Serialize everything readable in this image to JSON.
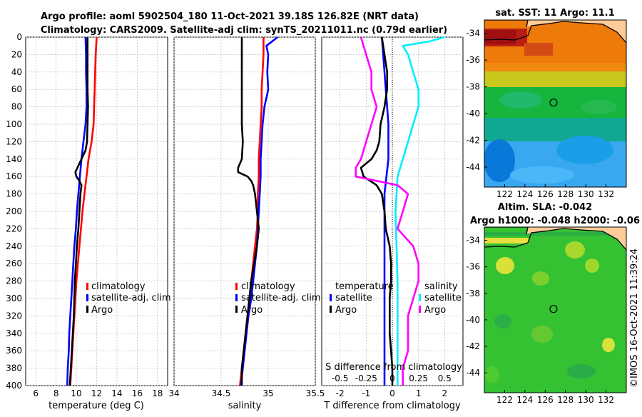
{
  "title": {
    "line1": "Argo profile: aoml 5902504_180 11-Oct-2021 39.18S 126.82E (NRT data)",
    "line2": "Climatology: CARS2009. Satellite-adj clim: synTS_20211011.nc (0.79d earlier)"
  },
  "depth_ticks": [
    "0",
    "20",
    "40",
    "60",
    "80",
    "100",
    "120",
    "140",
    "160",
    "180",
    "200",
    "220",
    "240",
    "260",
    "280",
    "300",
    "320",
    "340",
    "360",
    "380",
    "400"
  ],
  "chart_data": [
    {
      "type": "line",
      "name": "temperature",
      "xlabel": "temperature (deg C)",
      "ylabel": "",
      "xlim": [
        5,
        19
      ],
      "ylim": [
        400,
        0
      ],
      "xticks": [
        "6",
        "8",
        "10",
        "12",
        "14",
        "16",
        "18"
      ],
      "legend": [
        "climatology",
        "satellite-adj. clim",
        "Argo"
      ],
      "colors": {
        "climatology": "#ff0000",
        "satellite": "#0000ff",
        "argo": "#000000"
      },
      "series": [
        {
          "name": "climatology",
          "depth": [
            0,
            20,
            40,
            60,
            80,
            100,
            120,
            140,
            160,
            180,
            200,
            220,
            240,
            260,
            280,
            300,
            320,
            340,
            360,
            380,
            400
          ],
          "values": [
            12.0,
            11.9,
            11.85,
            11.8,
            11.75,
            11.7,
            11.5,
            11.2,
            11.0,
            10.8,
            10.6,
            10.45,
            10.3,
            10.15,
            10.0,
            9.9,
            9.8,
            9.7,
            9.6,
            9.5,
            9.4
          ]
        },
        {
          "name": "satellite-adj. clim",
          "depth": [
            0,
            20,
            40,
            60,
            80,
            100,
            120,
            140,
            160,
            180,
            200,
            220,
            240,
            260,
            280,
            300,
            320,
            340,
            360,
            380,
            400
          ],
          "values": [
            10.9,
            10.95,
            10.95,
            11.0,
            11.0,
            10.9,
            10.7,
            10.5,
            10.35,
            10.2,
            10.05,
            9.95,
            9.8,
            9.7,
            9.6,
            9.5,
            9.4,
            9.3,
            9.25,
            9.15,
            9.1
          ]
        },
        {
          "name": "Argo",
          "depth": [
            0,
            20,
            40,
            60,
            80,
            100,
            120,
            130,
            140,
            150,
            155,
            160,
            165,
            170,
            180,
            200,
            220,
            240,
            260,
            280,
            300,
            320,
            340,
            360,
            380,
            400
          ],
          "values": [
            11.1,
            11.1,
            11.1,
            11.1,
            11.15,
            11.1,
            11.05,
            10.9,
            10.5,
            10.1,
            9.9,
            10.0,
            10.3,
            10.5,
            10.4,
            10.3,
            10.2,
            10.05,
            9.95,
            9.85,
            9.8,
            9.75,
            9.65,
            9.55,
            9.45,
            9.35
          ]
        }
      ]
    },
    {
      "type": "line",
      "name": "salinity",
      "xlabel": "salinity",
      "ylabel": "",
      "xlim": [
        34,
        35.5
      ],
      "ylim": [
        400,
        0
      ],
      "xticks": [
        "34",
        "34.5",
        "35",
        "35.5"
      ],
      "legend": [
        "climatology",
        "satellite-adj. clim",
        "Argo"
      ],
      "colors": {
        "climatology": "#ff0000",
        "satellite": "#0000ff",
        "argo": "#000000"
      },
      "series": [
        {
          "name": "climatology",
          "depth": [
            0,
            20,
            40,
            60,
            80,
            100,
            120,
            140,
            160,
            180,
            200,
            220,
            240,
            260,
            280,
            300,
            320,
            340,
            360,
            380,
            400
          ],
          "values": [
            34.95,
            34.95,
            34.94,
            34.93,
            34.93,
            34.92,
            34.91,
            34.9,
            34.9,
            34.89,
            34.89,
            34.88,
            34.86,
            34.84,
            34.82,
            34.8,
            34.78,
            34.76,
            34.74,
            34.72,
            34.7
          ]
        },
        {
          "name": "satellite-adj. clim",
          "depth": [
            0,
            10,
            20,
            40,
            60,
            80,
            100,
            120,
            140,
            160,
            180,
            200,
            220,
            240,
            260,
            280,
            300,
            320,
            340,
            360,
            380,
            400
          ],
          "values": [
            35.1,
            34.98,
            35.0,
            34.99,
            35.0,
            34.96,
            34.94,
            34.93,
            34.92,
            34.92,
            34.91,
            34.9,
            34.89,
            34.88,
            34.86,
            34.84,
            34.82,
            34.79,
            34.77,
            34.75,
            34.73,
            34.71
          ]
        },
        {
          "name": "Argo",
          "depth": [
            0,
            20,
            40,
            60,
            80,
            100,
            120,
            140,
            150,
            155,
            160,
            165,
            170,
            180,
            200,
            220,
            240,
            260,
            280,
            300,
            320,
            340,
            360,
            380,
            400
          ],
          "values": [
            34.72,
            34.72,
            34.72,
            34.72,
            34.72,
            34.72,
            34.73,
            34.72,
            34.68,
            34.68,
            34.78,
            34.82,
            34.84,
            34.86,
            34.88,
            34.9,
            34.88,
            34.85,
            34.82,
            34.8,
            34.78,
            34.76,
            34.74,
            34.72,
            34.72
          ]
        }
      ]
    },
    {
      "type": "line",
      "name": "difference",
      "xlabel": "T difference from climatology",
      "top_label": "S difference from climatology",
      "xlim": [
        -2.7,
        2.7
      ],
      "ylim": [
        400,
        0
      ],
      "xticks": [
        "-2",
        "-1",
        "0",
        "1",
        "2"
      ],
      "top_ticks": [
        "-0.5",
        "-0.25",
        "0",
        "0.25",
        "0.5"
      ],
      "legend_temperature_title": "temperature",
      "legend_salinity_title": "salinity",
      "legend_satellite": "satellite",
      "legend_argo": "Argo",
      "colors": {
        "t_satellite": "#0000ff",
        "t_argo": "#000000",
        "s_satellite": "#00eeff",
        "s_argo": "#ff00ff"
      },
      "series": [
        {
          "name": "temperature satellite",
          "depth": [
            0,
            20,
            40,
            60,
            80,
            100,
            140,
            180,
            220,
            260,
            300,
            340,
            380,
            400
          ],
          "values": [
            -0.4,
            -0.35,
            -0.3,
            -0.25,
            -0.2,
            -0.15,
            -0.15,
            -0.3,
            -0.3,
            -0.3,
            -0.3,
            -0.3,
            -0.3,
            -0.3
          ]
        },
        {
          "name": "temperature Argo",
          "depth": [
            0,
            20,
            40,
            60,
            80,
            100,
            120,
            130,
            140,
            150,
            160,
            170,
            180,
            200,
            220,
            240,
            260,
            280,
            300,
            320,
            340,
            360,
            380,
            400
          ],
          "values": [
            -0.4,
            -0.3,
            -0.2,
            -0.2,
            -0.3,
            -0.45,
            -0.5,
            -0.6,
            -0.8,
            -1.2,
            -1.1,
            -0.6,
            -0.4,
            -0.3,
            -0.25,
            -0.1,
            -0.05,
            -0.05,
            -0.1,
            -0.1,
            -0.1,
            -0.05,
            0,
            0
          ]
        },
        {
          "name": "salinity satellite",
          "depth": [
            0,
            5,
            10,
            20,
            40,
            60,
            80,
            100,
            120,
            140,
            160,
            180,
            200,
            240,
            280,
            320,
            360,
            400
          ],
          "values": [
            0.5,
            0.35,
            0.1,
            0.15,
            0.2,
            0.25,
            0.25,
            0.2,
            0.15,
            0.1,
            0.05,
            0.04,
            0.03,
            0.04,
            0.05,
            0.05,
            0.05,
            0.05
          ]
        },
        {
          "name": "salinity Argo",
          "depth": [
            0,
            20,
            40,
            60,
            80,
            100,
            120,
            140,
            150,
            160,
            170,
            180,
            200,
            220,
            240,
            260,
            280,
            300,
            320,
            340,
            360,
            380,
            400
          ],
          "values": [
            -0.3,
            -0.25,
            -0.2,
            -0.2,
            -0.15,
            -0.2,
            -0.25,
            -0.3,
            -0.35,
            -0.35,
            0.05,
            0.15,
            0.1,
            0.05,
            0.2,
            0.25,
            0.25,
            0.2,
            0.15,
            0.15,
            0.15,
            0.1,
            0.1
          ]
        }
      ]
    },
    {
      "type": "heatmap",
      "name": "sat-sst",
      "title": "sat. SST: 11 Argo: 11.1",
      "xticks": [
        "122",
        "124",
        "126",
        "128",
        "130",
        "132"
      ],
      "yticks": [
        "-34",
        "-36",
        "-38",
        "-40",
        "-42",
        "-44"
      ],
      "xlim": [
        120,
        134
      ],
      "ylim": [
        -45.5,
        -33
      ]
    },
    {
      "type": "heatmap",
      "name": "altim-sla",
      "title_line1": "Altim. SLA: -0.042",
      "title_line2": "Argo h1000: -0.048 h2000: -0.06",
      "xticks": [
        "122",
        "124",
        "126",
        "128",
        "130",
        "132"
      ],
      "yticks": [
        "-34",
        "-36",
        "-38",
        "-40",
        "-42",
        "-44"
      ],
      "xlim": [
        120,
        134
      ],
      "ylim": [
        -45.5,
        -33
      ]
    }
  ],
  "argo_position": {
    "lon": 126.82,
    "lat": -39.18
  },
  "timestamp": "©IMOS 16-Oct-2021 11:39:24"
}
